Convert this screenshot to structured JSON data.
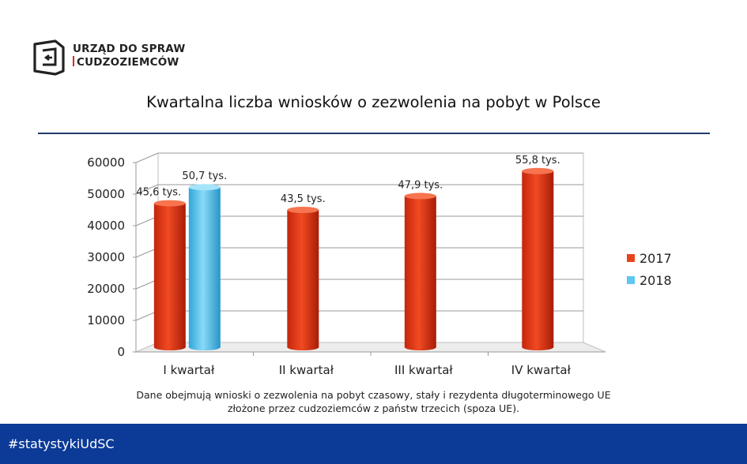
{
  "logo": {
    "line1": "URZĄD DO SPRAW",
    "line2": "CUDZOZIEMCÓW"
  },
  "title": "Kwartalna liczba wniosków o zezwolenia na pobyt w Polsce",
  "note": {
    "line1": "Dane obejmują wnioski o zezwolenia na pobyt czasowy, stały i rezydenta długoterminowego UE",
    "line2": "złożone przez cudzoziemców z państw trzecich (spoza UE)."
  },
  "footer": {
    "hashtag": "#statystykiUdSC"
  },
  "colors": {
    "brand_blue": "#0b3a97",
    "rule": "#1f3b6e",
    "series_2017": "#e8441c",
    "series_2018": "#5ec7ef",
    "logo_accent": "#d42a1e"
  },
  "chart_data": {
    "type": "bar",
    "categories": [
      "I kwartał",
      "II kwartał",
      "III kwartał",
      "IV kwartał"
    ],
    "series": [
      {
        "name": "2017",
        "values": [
          45600,
          43500,
          47900,
          55800
        ],
        "labels": [
          "45,6 tys.",
          "43,5 tys.",
          "47,9 tys.",
          "55,8 tys."
        ]
      },
      {
        "name": "2018",
        "values": [
          50700,
          null,
          null,
          null
        ],
        "labels": [
          "50,7 tys.",
          null,
          null,
          null
        ]
      }
    ],
    "yticks": [
      "0",
      "10000",
      "20000",
      "30000",
      "40000",
      "50000",
      "60000"
    ],
    "ylim": [
      0,
      60000
    ],
    "grid": true,
    "legend": "right"
  }
}
